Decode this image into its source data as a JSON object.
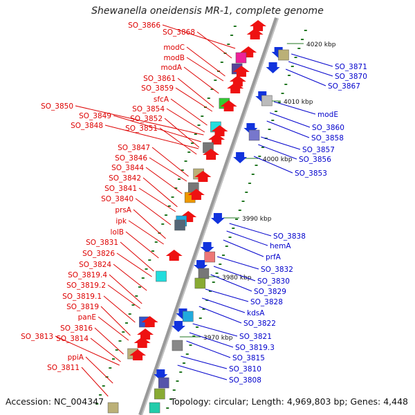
{
  "title": "Shewanella oneidensis MR-1, complete genome",
  "footer": {
    "accession": "Accession: NC_004347",
    "summary": "Topology: circular; Length: 4,969,803 bp; Genes: 4,448"
  },
  "colors": {
    "forward_label": "#dd0000",
    "reverse_label": "#0000cc",
    "forward_arrow": "#ee1111",
    "reverse_arrow": "#1133dd",
    "backbone": "#9a9a9a",
    "tick": "#227722"
  },
  "kbp_marks": [
    "4020 kbp",
    "4010 kbp",
    "4000 kbp",
    "3990 kbp",
    "3980 kbp",
    "3970 kbp"
  ],
  "forward_genes": [
    "SO_3866",
    "SO_3868",
    "modC",
    "modB",
    "modA",
    "SO_3861",
    "SO_3859",
    "sfcA",
    "SO_3850",
    "SO_3854",
    "SO_3849",
    "SO_3852",
    "SO_3848",
    "SO_3851",
    "SO_3847",
    "SO_3846",
    "SO_3844",
    "SO_3842",
    "SO_3841",
    "SO_3840",
    "prsA",
    "ipk",
    "lolB",
    "SO_3831",
    "SO_3826",
    "SO_3824",
    "SO_3819.4",
    "SO_3819.2",
    "SO_3819.1",
    "SO_3819",
    "panE",
    "SO_3816",
    "SO_3813",
    "SO_3814",
    "ppiA",
    "SO_3811"
  ],
  "reverse_genes": [
    "SO_3871",
    "SO_3870",
    "SO_3867",
    "modE",
    "SO_3860",
    "SO_3858",
    "SO_3857",
    "SO_3856",
    "SO_3853",
    "SO_3838",
    "hemA",
    "prfA",
    "SO_3832",
    "SO_3830",
    "SO_3829",
    "SO_3828",
    "kdsA",
    "SO_3822",
    "SO_3821",
    "SO_3819.3",
    "SO_3815",
    "SO_3810",
    "SO_3808"
  ]
}
